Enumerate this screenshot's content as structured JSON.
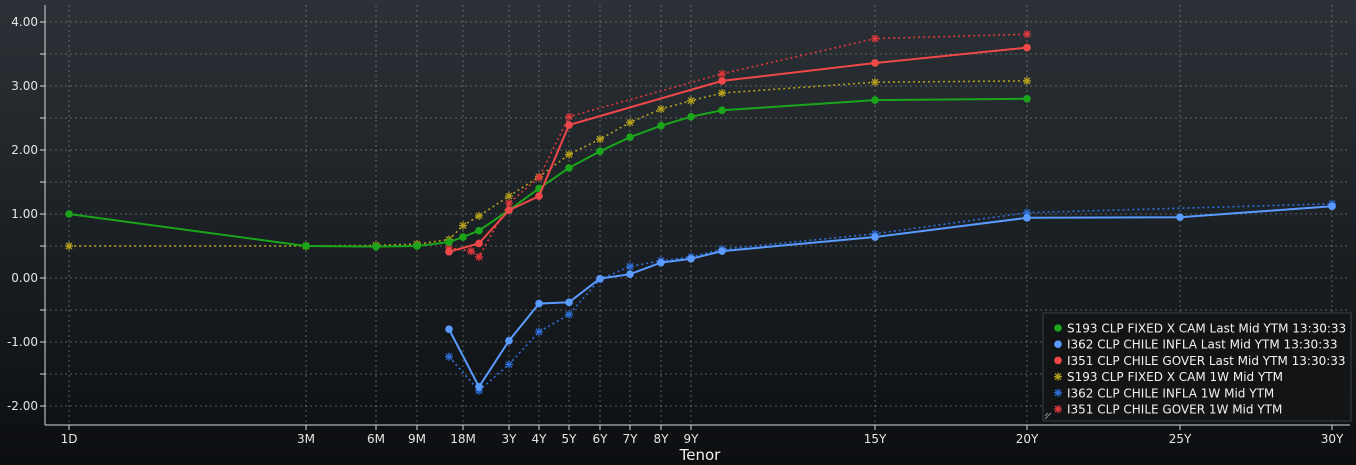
{
  "chart_data": {
    "type": "line",
    "xlabel": "Tenor",
    "ylabel": "",
    "ylim": [
      -2.25,
      4.25
    ],
    "yticks": [
      "4.00",
      "3.00",
      "2.00",
      "1.00",
      "0.00",
      "-1.00",
      "-2.00"
    ],
    "x_tick_labels": [
      {
        "label": "1D",
        "tenor_years": 0.0027
      },
      {
        "label": "3M",
        "tenor_years": 0.25
      },
      {
        "label": "6M",
        "tenor_years": 0.5
      },
      {
        "label": "9M",
        "tenor_years": 0.75
      },
      {
        "label": "18M",
        "tenor_years": 1.5
      },
      {
        "label": "3Y",
        "tenor_years": 3
      },
      {
        "label": "4Y",
        "tenor_years": 4
      },
      {
        "label": "5Y",
        "tenor_years": 5
      },
      {
        "label": "6Y",
        "tenor_years": 6
      },
      {
        "label": "7Y",
        "tenor_years": 7
      },
      {
        "label": "8Y",
        "tenor_years": 8
      },
      {
        "label": "9Y",
        "tenor_years": 9
      },
      {
        "label": "15Y",
        "tenor_years": 15
      },
      {
        "label": "20Y",
        "tenor_years": 20
      },
      {
        "label": "25Y",
        "tenor_years": 25
      },
      {
        "label": "30Y",
        "tenor_years": 30
      }
    ],
    "grid": true,
    "legend_position": "bottom-right",
    "series": [
      {
        "name": "S193 CLP FIXED X CAM Last Mid YTM 13:30:33",
        "color": "#1aa51a",
        "style": "solid",
        "marker": "dot",
        "points": [
          [
            0.0027,
            1.0
          ],
          [
            0.25,
            0.5
          ],
          [
            0.5,
            0.49
          ],
          [
            0.75,
            0.5
          ],
          [
            1.25,
            0.56
          ],
          [
            1.5,
            0.64
          ],
          [
            2,
            0.74
          ],
          [
            3,
            1.06
          ],
          [
            4,
            1.4
          ],
          [
            5,
            1.72
          ],
          [
            6,
            1.98
          ],
          [
            7,
            2.2
          ],
          [
            8,
            2.38
          ],
          [
            9,
            2.52
          ],
          [
            10,
            2.62
          ],
          [
            15,
            2.78
          ],
          [
            20,
            2.8
          ]
        ]
      },
      {
        "name": "I362 CLP CHILE INFLA Last Mid YTM 13:30:33",
        "color": "#5a9bff",
        "style": "solid",
        "marker": "dot",
        "points": [
          [
            1.25,
            -0.8
          ],
          [
            2,
            -1.7
          ],
          [
            3,
            -0.98
          ],
          [
            4,
            -0.4
          ],
          [
            5,
            -0.38
          ],
          [
            6,
            -0.01
          ],
          [
            7,
            0.06
          ],
          [
            8,
            0.24
          ],
          [
            9,
            0.3
          ],
          [
            10,
            0.42
          ],
          [
            15,
            0.64
          ],
          [
            20,
            0.94
          ],
          [
            25,
            0.95
          ],
          [
            30,
            1.12
          ]
        ]
      },
      {
        "name": "I351 CLP CHILE GOVER Last Mid YTM 13:30:33",
        "color": "#f04848",
        "style": "solid",
        "marker": "dot",
        "points": [
          [
            1.25,
            0.41
          ],
          [
            2,
            0.54
          ],
          [
            3,
            1.06
          ],
          [
            4,
            1.28
          ],
          [
            5,
            2.39
          ],
          [
            10,
            3.08
          ],
          [
            15,
            3.36
          ],
          [
            20,
            3.6
          ]
        ]
      },
      {
        "name": "S193 CLP FIXED X CAM 1W Mid YTM",
        "color": "#b5a01e",
        "style": "dotted",
        "marker": "star",
        "points": [
          [
            0.0027,
            0.5
          ],
          [
            0.25,
            0.5
          ],
          [
            0.5,
            0.51
          ],
          [
            0.75,
            0.53
          ],
          [
            1.25,
            0.6
          ],
          [
            1.5,
            0.82
          ],
          [
            2,
            0.97
          ],
          [
            3,
            1.28
          ],
          [
            4,
            1.58
          ],
          [
            5,
            1.93
          ],
          [
            6,
            2.17
          ],
          [
            7,
            2.43
          ],
          [
            8,
            2.64
          ],
          [
            9,
            2.77
          ],
          [
            10,
            2.89
          ],
          [
            15,
            3.06
          ],
          [
            20,
            3.08
          ]
        ]
      },
      {
        "name": "I362 CLP CHILE INFLA 1W Mid YTM",
        "color": "#2f6fd8",
        "style": "dotted",
        "marker": "star",
        "points": [
          [
            1.25,
            -1.23
          ],
          [
            2,
            -1.76
          ],
          [
            3,
            -1.35
          ],
          [
            4,
            -0.84
          ],
          [
            5,
            -0.57
          ],
          [
            6,
            -0.02
          ],
          [
            7,
            0.18
          ],
          [
            8,
            0.27
          ],
          [
            9,
            0.33
          ],
          [
            10,
            0.45
          ],
          [
            15,
            0.69
          ],
          [
            20,
            1.02
          ],
          [
            30,
            1.16
          ]
        ]
      },
      {
        "name": "I351 CLP CHILE GOVER 1W Mid YTM",
        "color": "#e0383d",
        "style": "dotted",
        "marker": "star",
        "points": [
          [
            1.25,
            0.47
          ],
          [
            1.75,
            0.42
          ],
          [
            2,
            0.33
          ],
          [
            3,
            1.17
          ],
          [
            4,
            1.57
          ],
          [
            5,
            2.52
          ],
          [
            10,
            3.19
          ],
          [
            15,
            3.74
          ],
          [
            20,
            3.81
          ]
        ]
      }
    ]
  }
}
